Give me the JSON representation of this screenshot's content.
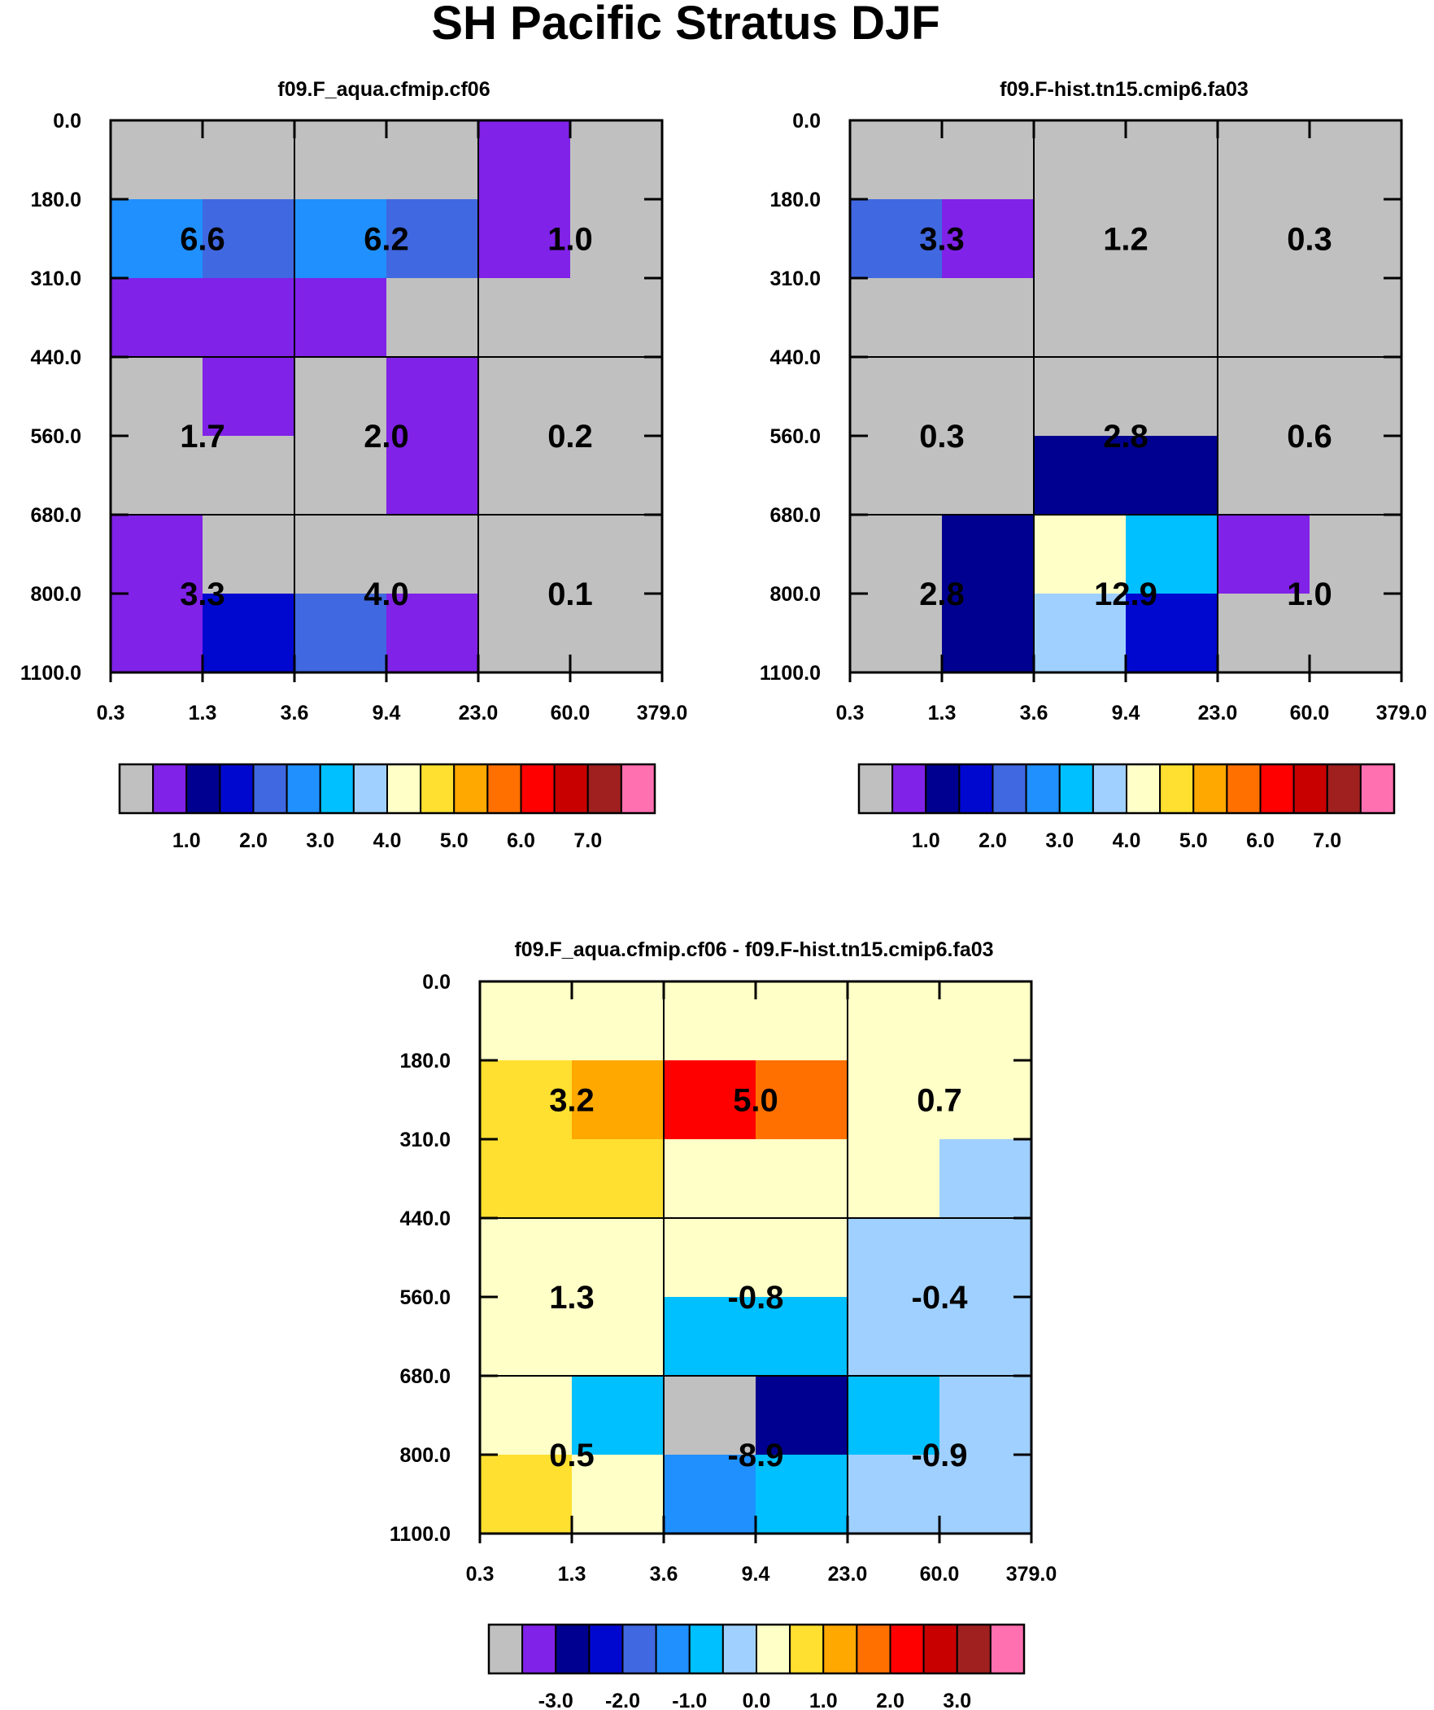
{
  "title": "SH Pacific Stratus DJF",
  "colors": {
    "palette": [
      "#c0c0c0",
      "#8022e8",
      "#000090",
      "#0008d0",
      "#4068e0",
      "#2090ff",
      "#00c0ff",
      "#a0d0ff",
      "#ffffc8",
      "#ffe030",
      "#ffa800",
      "#ff7000",
      "#ff0000",
      "#c80000",
      "#a02020",
      "#ff70b0"
    ],
    "grid": "#000000",
    "background": "#ffffff"
  },
  "chart_data": [
    {
      "type": "heatmap",
      "title": "f09.F_aqua.cfmip.cf06",
      "xlabel": "",
      "ylabel": "",
      "x_tick_labels": [
        "0.3",
        "1.3",
        "3.6",
        "9.4",
        "23.0",
        "60.0",
        "379.0"
      ],
      "y_tick_labels": [
        "0.0",
        "180.0",
        "310.0",
        "440.0",
        "560.0",
        "680.0",
        "800.0",
        "1100.0"
      ],
      "fine_cells": [
        [
          0,
          0,
          0,
          0,
          1,
          0
        ],
        [
          0,
          0,
          0,
          0,
          1,
          0
        ],
        [
          5,
          4,
          5,
          4,
          1,
          0
        ],
        [
          1,
          1,
          1,
          0,
          0,
          0
        ],
        [
          0,
          1,
          0,
          1,
          0,
          0
        ],
        [
          0,
          0,
          0,
          1,
          0,
          0
        ],
        [
          1,
          0,
          0,
          0,
          0,
          0
        ],
        [
          1,
          3,
          4,
          1,
          0,
          0
        ]
      ],
      "annotations": [
        [
          "6.6",
          "6.2",
          "1.0"
        ],
        [
          "1.7",
          "2.0",
          "0.2"
        ],
        [
          "3.3",
          "4.0",
          "0.1"
        ]
      ],
      "colorbar_labels": [
        "1.0",
        "2.0",
        "3.0",
        "4.0",
        "5.0",
        "6.0",
        "7.0"
      ]
    },
    {
      "type": "heatmap",
      "title": "f09.F-hist.tn15.cmip6.fa03",
      "xlabel": "",
      "ylabel": "",
      "x_tick_labels": [
        "0.3",
        "1.3",
        "3.6",
        "9.4",
        "23.0",
        "60.0",
        "379.0"
      ],
      "y_tick_labels": [
        "0.0",
        "180.0",
        "310.0",
        "440.0",
        "560.0",
        "680.0",
        "800.0",
        "1100.0"
      ],
      "fine_cells": [
        [
          0,
          0,
          0,
          0,
          0,
          0
        ],
        [
          0,
          0,
          0,
          0,
          0,
          0
        ],
        [
          4,
          1,
          0,
          0,
          0,
          0
        ],
        [
          0,
          0,
          0,
          0,
          0,
          0
        ],
        [
          0,
          0,
          0,
          0,
          0,
          0
        ],
        [
          0,
          0,
          2,
          2,
          0,
          0
        ],
        [
          0,
          2,
          8,
          6,
          1,
          0
        ],
        [
          0,
          2,
          7,
          3,
          0,
          0
        ]
      ],
      "annotations": [
        [
          "3.3",
          "1.2",
          "0.3"
        ],
        [
          "0.3",
          "2.8",
          "0.6"
        ],
        [
          "2.8",
          "12.9",
          "1.0"
        ]
      ],
      "colorbar_labels": [
        "1.0",
        "2.0",
        "3.0",
        "4.0",
        "5.0",
        "6.0",
        "7.0"
      ]
    },
    {
      "type": "heatmap",
      "title": "f09.F_aqua.cfmip.cf06 - f09.F-hist.tn15.cmip6.fa03",
      "xlabel": "",
      "ylabel": "",
      "x_tick_labels": [
        "0.3",
        "1.3",
        "3.6",
        "9.4",
        "23.0",
        "60.0",
        "379.0"
      ],
      "y_tick_labels": [
        "0.0",
        "180.0",
        "310.0",
        "440.0",
        "560.0",
        "680.0",
        "800.0",
        "1100.0"
      ],
      "fine_cells": [
        [
          8,
          8,
          8,
          8,
          8,
          8
        ],
        [
          8,
          8,
          8,
          8,
          8,
          8
        ],
        [
          9,
          10,
          12,
          11,
          8,
          8
        ],
        [
          9,
          9,
          8,
          8,
          8,
          7
        ],
        [
          8,
          8,
          8,
          8,
          7,
          7
        ],
        [
          8,
          8,
          6,
          6,
          7,
          7
        ],
        [
          8,
          6,
          0,
          2,
          6,
          7
        ],
        [
          9,
          8,
          5,
          6,
          7,
          7
        ]
      ],
      "annotations": [
        [
          "3.2",
          "5.0",
          "0.7"
        ],
        [
          "1.3",
          "-0.8",
          "-0.4"
        ],
        [
          "0.5",
          "-8.9",
          "-0.9"
        ]
      ],
      "colorbar_labels": [
        "-3.0",
        "-2.0",
        "-1.0",
        "0.0",
        "1.0",
        "2.0",
        "3.0"
      ]
    }
  ]
}
